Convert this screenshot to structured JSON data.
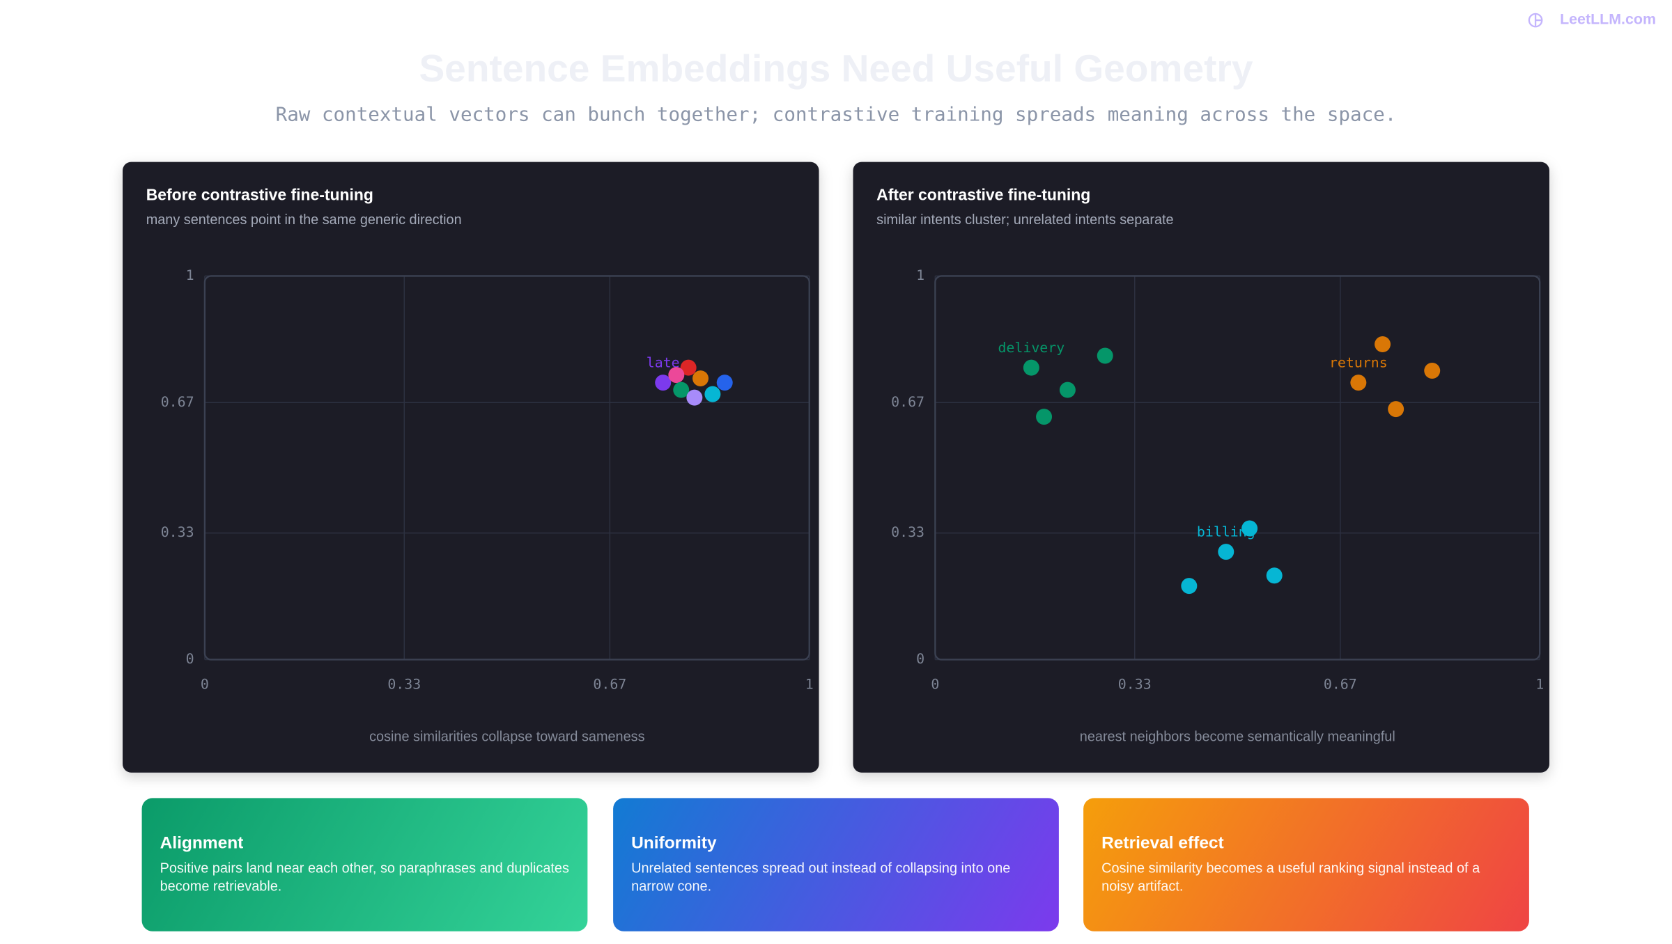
{
  "logo": "LeetLLM.com",
  "header": {
    "title": "Sentence Embeddings Need Useful Geometry",
    "subtitle": "Raw contextual vectors can bunch together; contrastive training spreads meaning across the space."
  },
  "chart_data": [
    {
      "type": "scatter",
      "title": "Before contrastive fine-tuning",
      "subtitle": "many sentences point in the same generic direction",
      "xlabel": "cosine similarities collapse toward sameness",
      "xlim": [
        0,
        1
      ],
      "ylim": [
        0,
        1
      ],
      "xticks": [
        0,
        0.33,
        0.67,
        1
      ],
      "yticks": [
        0,
        0.33,
        0.67,
        1
      ],
      "grid": true,
      "series": [
        {
          "name": "late",
          "color": "#7c3aed",
          "x": [
            0.758
          ],
          "y": [
            0.722
          ]
        },
        {
          "color": "#dc2626",
          "x": [
            0.8
          ],
          "y": [
            0.761
          ]
        },
        {
          "color": "#ec4899",
          "x": [
            0.78
          ],
          "y": [
            0.742
          ]
        },
        {
          "color": "#059669",
          "x": [
            0.788
          ],
          "y": [
            0.703
          ]
        },
        {
          "color": "#d97706",
          "x": [
            0.82
          ],
          "y": [
            0.733
          ]
        },
        {
          "color": "#a78bfa",
          "x": [
            0.81
          ],
          "y": [
            0.683
          ]
        },
        {
          "color": "#06b6d4",
          "x": [
            0.84
          ],
          "y": [
            0.692
          ]
        },
        {
          "color": "#2563eb",
          "x": [
            0.86
          ],
          "y": [
            0.722
          ]
        }
      ]
    },
    {
      "type": "scatter",
      "title": "After contrastive fine-tuning",
      "subtitle": "similar intents cluster; unrelated intents separate",
      "xlabel": "nearest neighbors become semantically meaningful",
      "xlim": [
        0,
        1
      ],
      "ylim": [
        0,
        1
      ],
      "xticks": [
        0,
        0.33,
        0.67,
        1
      ],
      "yticks": [
        0,
        0.33,
        0.67,
        1
      ],
      "grid": true,
      "series": [
        {
          "name": "delivery",
          "color": "#059669",
          "x": [
            0.159,
            0.219,
            0.18,
            0.281
          ],
          "y": [
            0.761,
            0.703,
            0.633,
            0.792
          ]
        },
        {
          "name": "returns",
          "color": "#d97706",
          "x": [
            0.7,
            0.74,
            0.822,
            0.762
          ],
          "y": [
            0.722,
            0.822,
            0.753,
            0.653
          ]
        },
        {
          "name": "billing",
          "color": "#06b6d4",
          "x": [
            0.481,
            0.52,
            0.561,
            0.42
          ],
          "y": [
            0.281,
            0.342,
            0.219,
            0.192
          ]
        }
      ]
    }
  ],
  "cards": [
    {
      "title": "Alignment",
      "text": "Positive pairs land near each other, so paraphrases and duplicates become retrievable."
    },
    {
      "title": "Uniformity",
      "text": "Unrelated sentences spread out instead of collapsing into one narrow cone."
    },
    {
      "title": "Retrieval effect",
      "text": "Cosine similarity becomes a useful ranking signal instead of a noisy artifact."
    }
  ]
}
